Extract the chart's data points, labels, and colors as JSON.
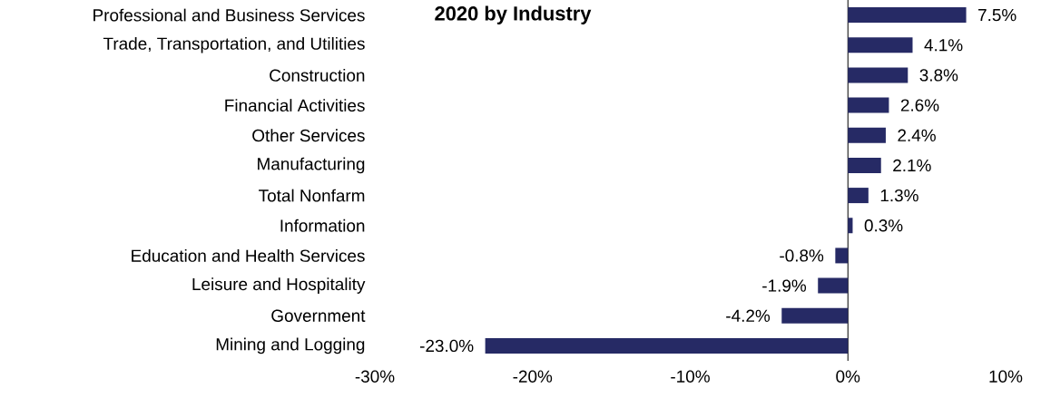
{
  "chart_data": {
    "type": "bar",
    "orientation": "horizontal",
    "title": "2020 by Industry",
    "categories": [
      "Professional and Business Services",
      "Trade, Transportation, and Utilities",
      "Construction",
      "Financial Activities",
      "Other Services",
      "Manufacturing",
      "Total Nonfarm",
      "Information",
      "Education and Health Services",
      "Leisure and Hospitality",
      "Government",
      "Mining and Logging"
    ],
    "values": [
      7.5,
      4.1,
      3.8,
      2.6,
      2.4,
      2.1,
      1.3,
      0.3,
      -0.8,
      -1.9,
      -4.2,
      -23.0
    ],
    "value_labels": [
      "7.5%",
      "4.1%",
      "3.8%",
      "2.6%",
      "2.4%",
      "2.1%",
      "1.3%",
      "0.3%",
      "-0.8%",
      "-1.9%",
      "-4.2%",
      "-23.0%"
    ],
    "color": "#262a65",
    "xlim": [
      -30,
      10
    ],
    "xticks": [
      {
        "value": -30,
        "label": "-30%"
      },
      {
        "value": -20,
        "label": "-20%"
      },
      {
        "value": -10,
        "label": "-10%"
      },
      {
        "value": 0,
        "label": "0%"
      },
      {
        "value": 10,
        "label": "10%"
      }
    ]
  }
}
